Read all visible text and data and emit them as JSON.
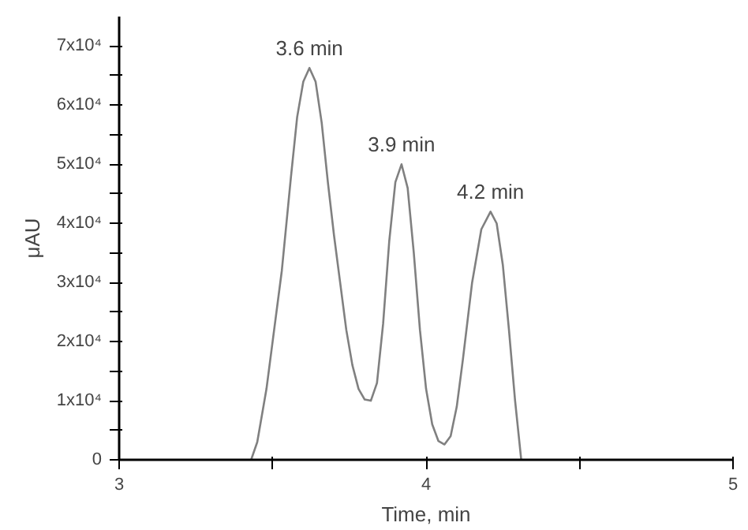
{
  "chart_data": {
    "type": "line",
    "xlabel": "Time, min",
    "ylabel": "μAU",
    "x": [
      3.43,
      3.45,
      3.48,
      3.5,
      3.53,
      3.56,
      3.58,
      3.6,
      3.62,
      3.64,
      3.66,
      3.68,
      3.7,
      3.72,
      3.74,
      3.76,
      3.78,
      3.8,
      3.82,
      3.84,
      3.86,
      3.88,
      3.9,
      3.92,
      3.94,
      3.96,
      3.98,
      4.0,
      4.02,
      4.04,
      4.06,
      4.08,
      4.1,
      4.12,
      4.15,
      4.18,
      4.21,
      4.23,
      4.25,
      4.27,
      4.29,
      4.31
    ],
    "series": [
      {
        "color": "#808080",
        "values": [
          0,
          3000,
          12000,
          20000,
          32000,
          48000,
          58000,
          64000,
          66300,
          64000,
          57000,
          47000,
          38000,
          30000,
          22000,
          16000,
          12000,
          10200,
          10000,
          13000,
          23000,
          37000,
          47000,
          50000,
          46000,
          35000,
          22000,
          12000,
          6000,
          3200,
          2600,
          4000,
          9000,
          17000,
          30000,
          39000,
          42000,
          40000,
          33000,
          22000,
          10000,
          0
        ]
      }
    ],
    "xlim": [
      3,
      5
    ],
    "ylim": [
      0,
      75000
    ],
    "xticks": [
      3,
      {
        "value": 3.5,
        "label": null
      },
      4,
      {
        "value": 4.5,
        "label": null
      },
      5
    ],
    "yticks": [
      0,
      {
        "value": 5000,
        "label": null
      },
      {
        "value": 10000,
        "label": "1x10⁴"
      },
      {
        "value": 15000,
        "label": null
      },
      {
        "value": 20000,
        "label": "2x10⁴"
      },
      {
        "value": 25000,
        "label": null
      },
      {
        "value": 30000,
        "label": "3x10⁴"
      },
      {
        "value": 35000,
        "label": null
      },
      {
        "value": 40000,
        "label": "4x10⁴"
      },
      {
        "value": 45000,
        "label": null
      },
      {
        "value": 50000,
        "label": "5x10⁴"
      },
      {
        "value": 55000,
        "label": null
      },
      {
        "value": 60000,
        "label": "6x10⁴"
      },
      {
        "value": 65000,
        "label": null
      },
      {
        "value": 70000,
        "label": "7x10⁴"
      }
    ],
    "annotations": [
      {
        "text": "3.6 min",
        "x": 3.62,
        "y": 66300
      },
      {
        "text": "3.9 min",
        "x": 3.92,
        "y": 50000
      },
      {
        "text": "4.2 min",
        "x": 4.21,
        "y": 42000
      }
    ],
    "grid": false,
    "marker": "none",
    "line_style": "solid"
  }
}
